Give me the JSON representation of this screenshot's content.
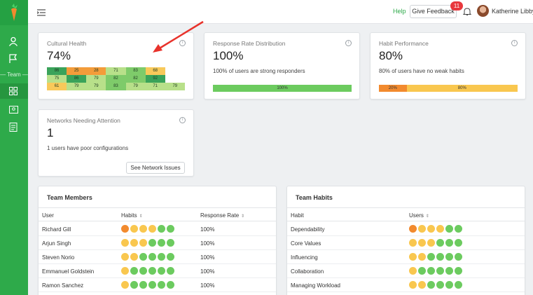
{
  "colors": {
    "brand": "#2eaa4a",
    "heat_dark": "#3aa35a",
    "heat_mid": "#7ecb6a",
    "heat_light": "#b8e08a",
    "heat_orange": "#f39c3a",
    "heat_yellow": "#f8c95a",
    "dot_orange": "#f28a2e",
    "dot_yellow": "#f9c74f",
    "dot_green": "#6ccb5f",
    "arrow": "#e8322b"
  },
  "sidebar": {
    "team_label": "Team"
  },
  "topbar": {
    "help": "Help",
    "feedback": "Give Feedback",
    "notifications": "11",
    "user": "Katherine Libby"
  },
  "cards": {
    "cultural": {
      "title": "Cultural Health",
      "value": "74%",
      "grid": [
        [
          "86",
          "25",
          "28",
          "71",
          "83",
          "68",
          ""
        ],
        [
          "75",
          "86",
          "79",
          "82",
          "82",
          "92",
          ""
        ],
        [
          "61",
          "79",
          "79",
          "83",
          "79",
          "71",
          "79"
        ]
      ]
    },
    "response": {
      "title": "Response Rate Distribution",
      "value": "100%",
      "sub": "100% of users are strong responders",
      "segments": [
        {
          "label": "100%",
          "fraction": 1.0,
          "color": "#6ccb5f"
        }
      ]
    },
    "habit": {
      "title": "Habit Performance",
      "value": "80%",
      "sub": "80% of users have no weak habits",
      "segments": [
        {
          "label": "20%",
          "fraction": 0.2,
          "color": "#f28a2e"
        },
        {
          "label": "80%",
          "fraction": 0.8,
          "color": "#f9c74f"
        }
      ]
    },
    "networks": {
      "title": "Networks Needing Attention",
      "value": "1",
      "sub": "1 users have poor configurations",
      "button": "See Network Issues"
    }
  },
  "team_members": {
    "title": "Team Members",
    "headers": {
      "user": "User",
      "habits": "Habits",
      "rate": "Response Rate"
    },
    "rows": [
      {
        "name": "Richard Gill",
        "dots": [
          "o",
          "y",
          "y",
          "y",
          "g",
          "g"
        ],
        "rate": "100%"
      },
      {
        "name": "Arjun Singh",
        "dots": [
          "y",
          "y",
          "y",
          "g",
          "g",
          "g"
        ],
        "rate": "100%"
      },
      {
        "name": "Steven Norio",
        "dots": [
          "y",
          "y",
          "g",
          "g",
          "g",
          "g"
        ],
        "rate": "100%"
      },
      {
        "name": "Emmanuel Goldstein",
        "dots": [
          "y",
          "g",
          "g",
          "g",
          "g",
          "g"
        ],
        "rate": "100%"
      },
      {
        "name": "Ramon Sanchez",
        "dots": [
          "y",
          "g",
          "g",
          "g",
          "g",
          "g"
        ],
        "rate": "100%"
      }
    ]
  },
  "team_habits": {
    "title": "Team Habits",
    "headers": {
      "habit": "Habit",
      "users": "Users"
    },
    "rows": [
      {
        "name": "Dependability",
        "dots": [
          "o",
          "y",
          "y",
          "y",
          "g",
          "g"
        ]
      },
      {
        "name": "Core Values",
        "dots": [
          "y",
          "y",
          "y",
          "g",
          "g",
          "g"
        ]
      },
      {
        "name": "Influencing",
        "dots": [
          "y",
          "y",
          "g",
          "g",
          "g",
          "g"
        ]
      },
      {
        "name": "Collaboration",
        "dots": [
          "y",
          "g",
          "g",
          "g",
          "g",
          "g"
        ]
      },
      {
        "name": "Managing Workload",
        "dots": [
          "y",
          "y",
          "g",
          "g",
          "g",
          "g"
        ]
      }
    ]
  }
}
